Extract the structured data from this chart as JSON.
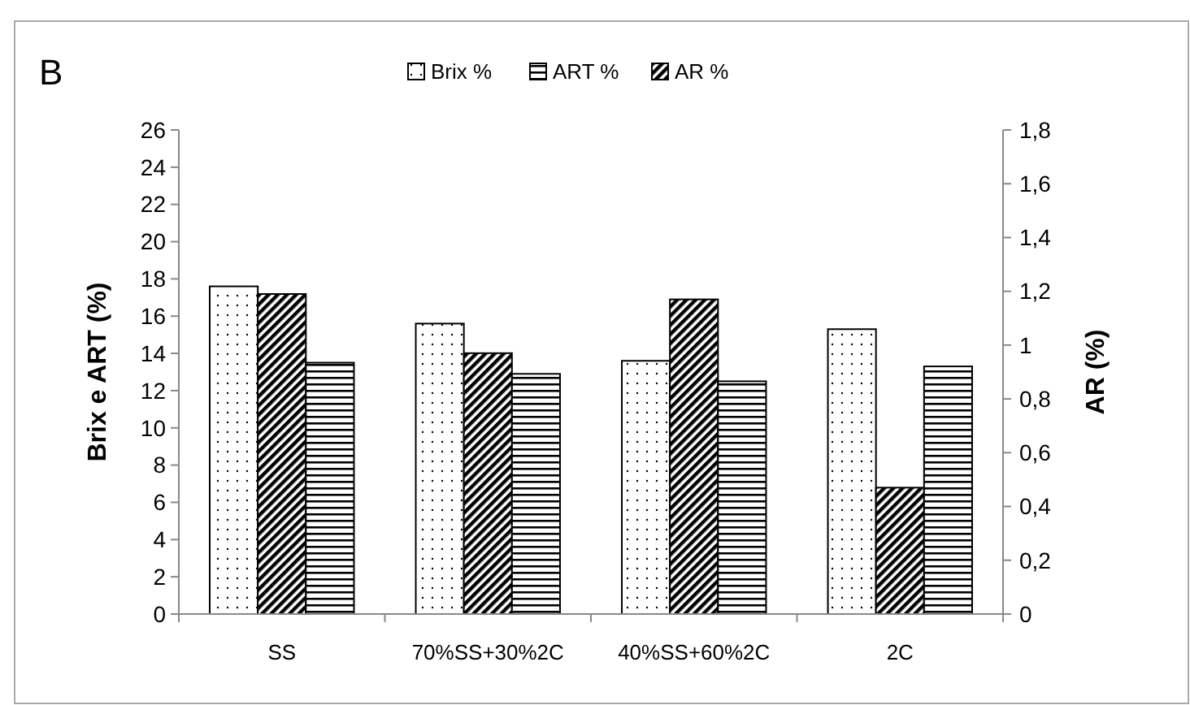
{
  "chart_data": {
    "type": "bar",
    "title": "B",
    "categories": [
      "SS",
      "70%SS+30%2C",
      "40%SS+60%2C",
      "2C"
    ],
    "series": [
      {
        "name": "Brix %",
        "color": "#000000",
        "values": [
          17.6,
          15.6,
          13.6,
          15.3
        ]
      },
      {
        "name": "AR %",
        "color": "#000000",
        "values": [
          1.19,
          0.97,
          1.17,
          0.47
        ],
        "axis": "y2"
      },
      {
        "name": "ART %",
        "color": "#000000",
        "values": [
          13.5,
          12.9,
          12.5,
          13.3
        ]
      }
    ],
    "ylabel": "Brix e ART (%)",
    "y2label": "AR (%)",
    "ylim": [
      0,
      26
    ],
    "yticks": [
      0,
      2,
      4,
      6,
      8,
      10,
      12,
      14,
      16,
      18,
      20,
      22,
      24,
      26
    ],
    "y2lim": [
      0,
      1.8
    ],
    "y2ticks": [
      0,
      {
        "value": 0.2,
        "label": "0,2"
      },
      {
        "value": 0.4,
        "label": "0,4"
      },
      {
        "value": 0.6,
        "label": "0,6"
      },
      {
        "value": 0.8,
        "label": "0,8"
      },
      1,
      {
        "value": 1.2,
        "label": "1,2"
      },
      {
        "value": 1.4,
        "label": "1,4"
      },
      {
        "value": 1.6,
        "label": "1,6"
      },
      {
        "value": 1.8,
        "label": "1,8"
      }
    ],
    "legend": "top",
    "grid": false
  }
}
